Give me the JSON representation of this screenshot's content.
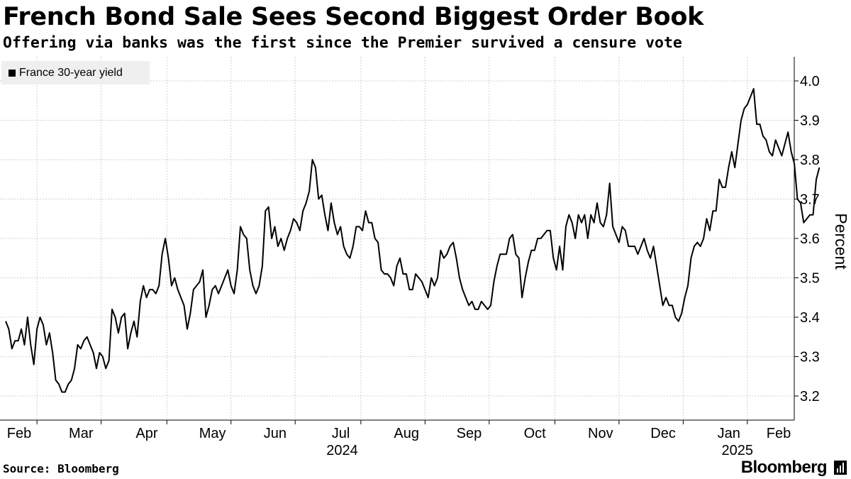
{
  "header": {
    "title": "French Bond Sale Sees Second Biggest Order Book",
    "subtitle": "Offering via banks was the first since the Premier survived a censure vote"
  },
  "footer": {
    "source": "Source: Bloomberg",
    "brand": "Bloomberg"
  },
  "colors": {
    "line": "#000000",
    "grid": "#cccccc",
    "legend_bg": "#efefef"
  },
  "chart_data": {
    "type": "line",
    "title": "French Bond Sale Sees Second Biggest Order Book",
    "ylabel": "Percent",
    "xlabel": "",
    "ylim": [
      3.14,
      4.06
    ],
    "yticks": [
      3.2,
      3.3,
      3.4,
      3.5,
      3.6,
      3.7,
      3.8,
      3.9,
      4.0
    ],
    "ytick_labels": [
      "3.2",
      "3.3",
      "3.4",
      "3.5",
      "3.6",
      "3.7",
      "3.8",
      "3.9",
      "4.0"
    ],
    "x_month_labels": [
      "Feb",
      "Mar",
      "Apr",
      "May",
      "Jun",
      "Jul",
      "Aug",
      "Sep",
      "Oct",
      "Nov",
      "Dec",
      "Jan",
      "Feb"
    ],
    "x_month_index": [
      0,
      20,
      41,
      62,
      82,
      103,
      124,
      144,
      165,
      186,
      206,
      227,
      247
    ],
    "x_year_labels": [
      {
        "label": "2024",
        "index": 103
      },
      {
        "label": "2025",
        "index": 227
      }
    ],
    "x_range": [
      -6,
      256
    ],
    "legend": [
      "France 30-year yield"
    ],
    "grid": true,
    "series": [
      {
        "name": "France 30-year yield",
        "values": [
          3.39,
          3.37,
          3.32,
          3.34,
          3.34,
          3.37,
          3.33,
          3.4,
          3.33,
          3.28,
          3.37,
          3.4,
          3.38,
          3.33,
          3.36,
          3.31,
          3.24,
          3.23,
          3.21,
          3.21,
          3.23,
          3.24,
          3.27,
          3.33,
          3.32,
          3.34,
          3.35,
          3.33,
          3.31,
          3.27,
          3.31,
          3.3,
          3.27,
          3.29,
          3.42,
          3.4,
          3.36,
          3.4,
          3.41,
          3.32,
          3.36,
          3.39,
          3.35,
          3.44,
          3.48,
          3.45,
          3.47,
          3.47,
          3.46,
          3.48,
          3.56,
          3.6,
          3.55,
          3.48,
          3.5,
          3.47,
          3.45,
          3.43,
          3.37,
          3.41,
          3.47,
          3.48,
          3.49,
          3.52,
          3.4,
          3.43,
          3.47,
          3.48,
          3.46,
          3.48,
          3.5,
          3.52,
          3.48,
          3.46,
          3.52,
          3.63,
          3.61,
          3.6,
          3.52,
          3.48,
          3.46,
          3.48,
          3.53,
          3.67,
          3.68,
          3.6,
          3.63,
          3.58,
          3.6,
          3.57,
          3.6,
          3.62,
          3.65,
          3.64,
          3.62,
          3.67,
          3.69,
          3.72,
          3.8,
          3.78,
          3.7,
          3.71,
          3.66,
          3.62,
          3.69,
          3.64,
          3.61,
          3.63,
          3.58,
          3.56,
          3.55,
          3.58,
          3.63,
          3.63,
          3.62,
          3.67,
          3.64,
          3.64,
          3.6,
          3.59,
          3.52,
          3.51,
          3.51,
          3.5,
          3.48,
          3.53,
          3.55,
          3.51,
          3.51,
          3.47,
          3.47,
          3.51,
          3.5,
          3.49,
          3.47,
          3.45,
          3.5,
          3.48,
          3.5,
          3.57,
          3.55,
          3.56,
          3.58,
          3.59,
          3.55,
          3.5,
          3.47,
          3.45,
          3.43,
          3.44,
          3.42,
          3.42,
          3.44,
          3.43,
          3.42,
          3.43,
          3.49,
          3.53,
          3.56,
          3.56,
          3.56,
          3.6,
          3.61,
          3.56,
          3.55,
          3.45,
          3.5,
          3.54,
          3.57,
          3.57,
          3.6,
          3.6,
          3.61,
          3.62,
          3.62,
          3.55,
          3.52,
          3.58,
          3.52,
          3.63,
          3.66,
          3.64,
          3.6,
          3.66,
          3.64,
          3.66,
          3.6,
          3.66,
          3.64,
          3.69,
          3.64,
          3.63,
          3.66,
          3.74,
          3.63,
          3.61,
          3.59,
          3.63,
          3.62,
          3.58,
          3.58,
          3.58,
          3.56,
          3.58,
          3.6,
          3.57,
          3.55,
          3.58,
          3.53,
          3.48,
          3.43,
          3.45,
          3.43,
          3.43,
          3.4,
          3.39,
          3.41,
          3.45,
          3.48,
          3.55,
          3.58,
          3.59,
          3.58,
          3.6,
          3.65,
          3.62,
          3.67,
          3.67,
          3.75,
          3.73,
          3.73,
          3.78,
          3.82,
          3.78,
          3.84,
          3.9,
          3.93,
          3.94,
          3.96,
          3.98,
          3.89,
          3.89,
          3.86,
          3.85,
          3.82,
          3.81,
          3.85,
          3.83,
          3.81,
          3.84,
          3.87,
          3.82,
          3.79,
          3.7,
          3.69,
          3.64,
          3.65,
          3.66,
          3.66,
          3.75,
          3.78
        ]
      }
    ]
  }
}
